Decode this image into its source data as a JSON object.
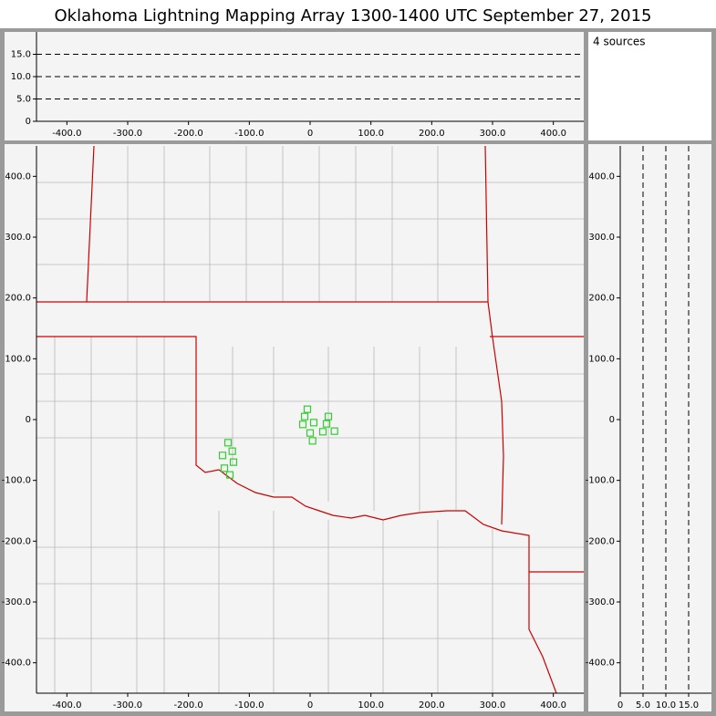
{
  "header": {
    "title": "Oklahoma Lightning Mapping Array   1300-1400 UTC  September 27, 2015"
  },
  "chart_data": [
    {
      "type": "scatter",
      "annotation": "4 sources",
      "x": [],
      "values": [],
      "xlim": [
        -450,
        450
      ],
      "ylim": [
        0,
        20
      ],
      "grid": "y",
      "xticks": [
        {
          "value": -400,
          "label": "-400.0"
        },
        {
          "value": -300,
          "label": "-300.0"
        },
        {
          "value": -200,
          "label": "-200.0"
        },
        {
          "value": -100,
          "label": "-100.0"
        },
        0,
        {
          "value": 100,
          "label": "100.0"
        },
        {
          "value": 200,
          "label": "200.0"
        },
        {
          "value": 300,
          "label": "300.0"
        },
        {
          "value": 400,
          "label": "400.0"
        }
      ],
      "yticks": [
        0,
        {
          "value": 5,
          "label": "5.0"
        },
        {
          "value": 10,
          "label": "10.0"
        },
        {
          "value": 15,
          "label": "15.0"
        }
      ]
    },
    {
      "type": "scatter",
      "color": "#33cc33",
      "x": [
        -4.5,
        -9,
        6,
        -12,
        30,
        27,
        21,
        40,
        0,
        4,
        -135,
        -128,
        -144,
        -126,
        -141,
        -132
      ],
      "values": [
        17,
        5,
        -5,
        -8,
        5,
        -7,
        -20,
        -19,
        -22,
        -35,
        -38,
        -52,
        -59,
        -70,
        -80,
        -91
      ],
      "xlim": [
        -450,
        450
      ],
      "ylim": [
        -450,
        450
      ],
      "grid": "none",
      "xticks": [
        {
          "value": -400,
          "label": "-400.0"
        },
        {
          "value": -300,
          "label": "-300.0"
        },
        {
          "value": -200,
          "label": "-200.0"
        },
        {
          "value": -100,
          "label": "-100.0"
        },
        0,
        {
          "value": 100,
          "label": "100.0"
        },
        {
          "value": 200,
          "label": "200.0"
        },
        {
          "value": 300,
          "label": "300.0"
        },
        {
          "value": 400,
          "label": "400.0"
        }
      ],
      "yticks": [
        {
          "value": -400,
          "label": "-400.0"
        },
        {
          "value": -300,
          "label": "-300.0"
        },
        {
          "value": -200,
          "label": "-200.0"
        },
        {
          "value": -100,
          "label": "-100.0"
        },
        0,
        {
          "value": 100,
          "label": "100.0"
        },
        {
          "value": 200,
          "label": "200.0"
        },
        {
          "value": 300,
          "label": "300.0"
        },
        {
          "value": 400,
          "label": "400.0"
        }
      ]
    },
    {
      "type": "scatter",
      "x": [],
      "values": [],
      "xlim": [
        0,
        20
      ],
      "ylim": [
        -450,
        450
      ],
      "grid": "x",
      "xticks": [
        0,
        {
          "value": 5,
          "label": "5.0"
        },
        {
          "value": 10,
          "label": "10.0"
        },
        {
          "value": 15,
          "label": "15.0"
        }
      ],
      "yticks": [
        {
          "value": -400,
          "label": "-400.0"
        },
        {
          "value": -300,
          "label": "-300.0"
        },
        {
          "value": -200,
          "label": "-200.0"
        },
        {
          "value": -100,
          "label": "-100.0"
        },
        0,
        {
          "value": 100,
          "label": "100.0"
        },
        {
          "value": 200,
          "label": "200.0"
        },
        {
          "value": 300,
          "label": "300.0"
        },
        {
          "value": 400,
          "label": "400.0"
        }
      ]
    }
  ]
}
